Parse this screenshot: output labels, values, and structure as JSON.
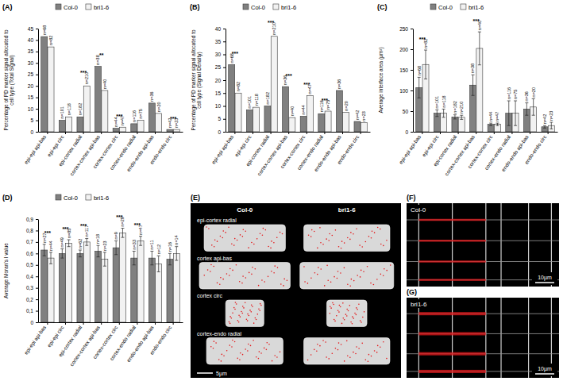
{
  "chart_data": [
    {
      "type": "bar",
      "panel_label": "(A)",
      "y_label": "Percentage of PD marker signal allocated to cell type (Total Signal)",
      "categories": [
        "epi-epi api-bas",
        "epi-epi circ",
        "epi-cortex radial",
        "cortex-cortex api-bas",
        "cortex-cortex circ",
        "cortex-endo radial",
        "endo-endo api-bas",
        "endo-endo circ"
      ],
      "series": [
        {
          "name": "Col-0",
          "color": "#808080",
          "values": [
            41.5,
            5,
            6.5,
            28.5,
            1.5,
            3.5,
            12.5,
            1
          ],
          "n_labels": [
            "n=68",
            "n=101",
            "n=182",
            "n=38",
            "n=44",
            "n=116",
            "n=36",
            "n=42"
          ]
        },
        {
          "name": "bri1-6",
          "color": "#f2f2f2",
          "values": [
            37,
            6.5,
            20,
            18,
            2,
            5,
            8,
            1
          ],
          "n_labels": [
            "n=82",
            "n=118",
            "n=210",
            "n=40",
            "n=47",
            "n=75",
            "n=20",
            "n=23"
          ]
        }
      ],
      "significance": [
        null,
        null,
        "***",
        "**",
        "***",
        null,
        null,
        "***"
      ],
      "ylim": [
        0,
        45
      ],
      "yticks": [
        0,
        5,
        10,
        15,
        20,
        25,
        30,
        35,
        40,
        45
      ],
      "grid": false,
      "legend": "top"
    },
    {
      "type": "bar",
      "panel_label": "(B)",
      "y_label": "Percentage of PD marker signal allocated to cell type (Signal Density)",
      "categories": [
        "epi-epi api-bas",
        "epi-epi circ",
        "epi-cortex radial",
        "cortex-cortex api-bas",
        "cortex-cortex circ",
        "cortex-endo radial",
        "endo-endo api-bas",
        "endo-endo circ"
      ],
      "series": [
        {
          "name": "Col-0",
          "color": "#808080",
          "values": [
            26,
            8.5,
            10,
            17.5,
            6,
            7,
            16,
            4
          ],
          "n_labels": [
            "n=68",
            "n=101",
            "n=182",
            "n=36",
            "n=44",
            "n=116",
            "n=36",
            "n=42"
          ]
        },
        {
          "name": "bri1-6",
          "color": "#f2f2f2",
          "values": [
            15,
            9.5,
            37,
            5.5,
            14,
            8,
            7.5,
            3.5
          ],
          "n_labels": [
            "n=82",
            "n=118",
            "n=210",
            "n=40",
            "n=47",
            "n=75",
            "n=20",
            "n=23"
          ]
        }
      ],
      "significance": [
        "***",
        null,
        "***",
        "***",
        "***",
        "***",
        null,
        null
      ],
      "ylim": [
        0,
        40
      ],
      "yticks": [
        0,
        5,
        10,
        15,
        20,
        25,
        30,
        35,
        40
      ],
      "grid": false,
      "legend": "top"
    },
    {
      "type": "bar",
      "panel_label": "(C)",
      "y_label": "Average interface area (µm²)",
      "categories": [
        "epi-epi api-bas",
        "epi-epi circ",
        "epi-cortex radial",
        "cortex-cortex api-bas",
        "cortex-cortex circ",
        "cortex-endo radial",
        "endo-endo api-bas",
        "endo-endo circ"
      ],
      "series": [
        {
          "name": "Col-0",
          "color": "#808080",
          "values": [
            107,
            45,
            36,
            113,
            18,
            45,
            55,
            12
          ],
          "errors": [
            25,
            8,
            5,
            25,
            3,
            30,
            15,
            3
          ],
          "n_labels": [
            "n=68",
            "n=101",
            "n=182",
            "n=38",
            "n=44",
            "n=116",
            "n=36",
            "n=42"
          ]
        },
        {
          "name": "bri1-6",
          "color": "#f2f2f2",
          "values": [
            163,
            45,
            35,
            202,
            18,
            45,
            60,
            15
          ],
          "errors": [
            35,
            10,
            5,
            40,
            3,
            30,
            20,
            8
          ],
          "n_labels": [
            "n=82",
            "n=118",
            "n=210",
            "n=40",
            "n=47",
            "n=75",
            "n=20",
            "n=23"
          ]
        }
      ],
      "significance": [
        "***",
        null,
        null,
        "***",
        null,
        null,
        null,
        null
      ],
      "ylim": [
        0,
        250
      ],
      "yticks": [
        0,
        50,
        100,
        150,
        200,
        250
      ],
      "grid": false,
      "legend": "top"
    },
    {
      "type": "bar",
      "panel_label": "(D)",
      "y_label": "Average Moran's I value",
      "categories": [
        "epi-epi api-bas",
        "epi-epi circ",
        "epi-cortex radial",
        "cortex-cortex api-bas",
        "cortex-cortex circ",
        "cortex-endo radial",
        "endo-endo api-bas",
        "endo-endo circ"
      ],
      "series": [
        {
          "name": "Col-0",
          "color": "#808080",
          "values": [
            0.63,
            0.6,
            0.6,
            0.62,
            0.65,
            0.56,
            0.56,
            0.55
          ],
          "errors": [
            0.05,
            0.04,
            0.03,
            0.05,
            0.06,
            0.06,
            0.06,
            0.05
          ],
          "n_labels": [
            "n=27",
            "n=49",
            "n=62",
            "n=18",
            "n=9",
            "n=33",
            "n=11",
            "n=16"
          ]
        },
        {
          "name": "bri1-6",
          "color": "#f2f2f2",
          "values": [
            0.56,
            0.69,
            0.7,
            0.55,
            0.78,
            0.71,
            0.51,
            0.6
          ],
          "errors": [
            0.05,
            0.03,
            0.03,
            0.06,
            0.04,
            0.04,
            0.07,
            0.06
          ],
          "n_labels": [
            "n=44",
            "n=85",
            "n=117",
            "n=23",
            "n=29",
            "n=47",
            "n=12",
            "n=14"
          ]
        }
      ],
      "significance": [
        "***",
        "***",
        "***",
        null,
        "***",
        "***",
        null,
        null
      ],
      "ylim": [
        0,
        0.9
      ],
      "yticks": [
        0,
        {
          "value": 0.1,
          "label": "0,1"
        },
        {
          "value": 0.2,
          "label": "0,2"
        },
        {
          "value": 0.3,
          "label": "0,3"
        },
        {
          "value": 0.4,
          "label": "0,4"
        },
        {
          "value": 0.5,
          "label": "0,5"
        },
        {
          "value": 0.6,
          "label": "0,6"
        },
        {
          "value": 0.7,
          "label": "0,7"
        },
        {
          "value": 0.8,
          "label": "0,8"
        },
        {
          "value": 0.9,
          "label": "0,9"
        }
      ],
      "grid": false,
      "legend": "top"
    }
  ],
  "images": [
    {
      "panel_label": "(E)",
      "columns": [
        "Col-0",
        "bri1-6"
      ],
      "rows": [
        "epi-cortex radial",
        "cortex api-bas",
        "cortex circ",
        "cortex-endo radial"
      ],
      "scale_bar": "5µm"
    },
    {
      "panel_label": "(F)",
      "genotype": "Col-0",
      "scale_bar": "10µm"
    },
    {
      "panel_label": "(G)",
      "genotype": "bri1-6",
      "scale_bar": "10µm"
    }
  ]
}
